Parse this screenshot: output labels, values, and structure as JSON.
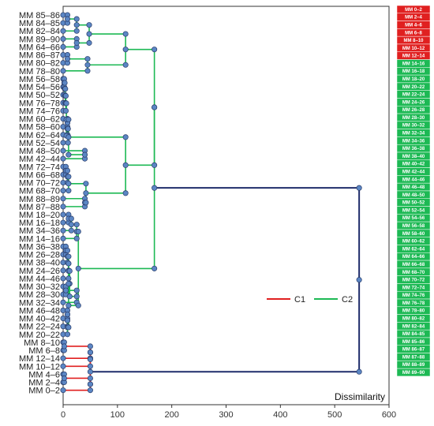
{
  "chart_data": {
    "type": "dendrogram",
    "xlabel": "Dissimilarity",
    "xlim": [
      0,
      600
    ],
    "xticks": [
      0,
      100,
      200,
      300,
      400,
      500,
      600
    ],
    "colors": {
      "C1": "#e02020",
      "C2": "#1db954",
      "root": "#1f2d6b",
      "node": "#5b86c4"
    },
    "legend": {
      "placement": "center-right",
      "entries": [
        {
          "name": "C1",
          "color": "#e02020"
        },
        {
          "name": "C2",
          "color": "#1db954"
        }
      ]
    },
    "leaves": [
      "MM 85–86",
      "MM 84–85",
      "MM 82–84",
      "MM 89–90",
      "MM 64–66",
      "MM 86–87",
      "MM 80–82",
      "MM 78–80",
      "MM 56–58",
      "MM 54–56",
      "MM 50–52",
      "MM 76–78",
      "MM 74–76",
      "MM 60–62",
      "MM 58–60",
      "MM 62–64",
      "MM 52–54",
      "MM 48–50",
      "MM 42–44",
      "MM 72–74",
      "MM 66–68",
      "MM 70–72",
      "MM 68–70",
      "MM 88–89",
      "MM 87–88",
      "MM 18–20",
      "MM 16–18",
      "MM 34–36",
      "MM 14–16",
      "MM 36–38",
      "MM 26–28",
      "MM 38–40",
      "MM 24–26",
      "MM 44–46",
      "MM 30–32",
      "MM 28–30",
      "MM 32–34",
      "MM 46–48",
      "MM 40–42",
      "MM 22–24",
      "MM 20–22",
      "MM 8–10",
      "MM 6–8",
      "MM 12–14",
      "MM 10–12",
      "MM 4–6",
      "MM 2–4",
      "MM 0–2"
    ],
    "merges": [
      {
        "id": "n1",
        "children": [
          "MM 85–86",
          "MM 84–85"
        ],
        "height": 8,
        "cluster": "C2"
      },
      {
        "id": "n2",
        "children": [
          "n1",
          "MM 82–84"
        ],
        "height": 25,
        "cluster": "C2"
      },
      {
        "id": "n3",
        "children": [
          "MM 89–90",
          "MM 64–66"
        ],
        "height": 25,
        "cluster": "C2"
      },
      {
        "id": "n4",
        "children": [
          "n2",
          "n3"
        ],
        "height": 48,
        "cluster": "C2"
      },
      {
        "id": "n5",
        "children": [
          "MM 86–87",
          "MM 80–82"
        ],
        "height": 8,
        "cluster": "C2"
      },
      {
        "id": "n6",
        "children": [
          "n5",
          "MM 78–80"
        ],
        "height": 45,
        "cluster": "C2"
      },
      {
        "id": "n7",
        "children": [
          "n4",
          "n6"
        ],
        "height": 115,
        "cluster": "C2"
      },
      {
        "id": "n8",
        "children": [
          "MM 56–58",
          "MM 54–56"
        ],
        "height": 2,
        "cluster": "C2"
      },
      {
        "id": "n9",
        "children": [
          "n8",
          "MM 50–52"
        ],
        "height": 3,
        "cluster": "C2"
      },
      {
        "id": "n10",
        "children": [
          "n9",
          "MM 76–78"
        ],
        "height": 4,
        "cluster": "C2"
      },
      {
        "id": "n11",
        "children": [
          "n10",
          "MM 74–76"
        ],
        "height": 5,
        "cluster": "C2"
      },
      {
        "id": "n12",
        "children": [
          "MM 60–62",
          "MM 58–60"
        ],
        "height": 8,
        "cluster": "C2"
      },
      {
        "id": "n13",
        "children": [
          "n12",
          "MM 62–64"
        ],
        "height": 8,
        "cluster": "C2"
      },
      {
        "id": "n14",
        "children": [
          "n13",
          "MM 52–54"
        ],
        "height": 9,
        "cluster": "C2"
      },
      {
        "id": "n15",
        "children": [
          "n11",
          "n14"
        ],
        "height": 6,
        "cluster": "C2"
      },
      {
        "id": "n16",
        "children": [
          "MM 48–50",
          "MM 42–44"
        ],
        "height": 40,
        "cluster": "C2"
      },
      {
        "id": "n17",
        "children": [
          "n15",
          "n16"
        ],
        "height": 10,
        "cluster": "C2"
      },
      {
        "id": "n18",
        "children": [
          "MM 72–74",
          "MM 66–68"
        ],
        "height": 5,
        "cluster": "C2"
      },
      {
        "id": "n19",
        "children": [
          "n18",
          "MM 70–72"
        ],
        "height": 8,
        "cluster": "C2"
      },
      {
        "id": "n20",
        "children": [
          "n19",
          "MM 68–70"
        ],
        "height": 10,
        "cluster": "C2"
      },
      {
        "id": "n21",
        "children": [
          "MM 88–89",
          "MM 87–88"
        ],
        "height": 40,
        "cluster": "C2"
      },
      {
        "id": "n22",
        "children": [
          "n20",
          "n21"
        ],
        "height": 42,
        "cluster": "C2"
      },
      {
        "id": "n23",
        "children": [
          "n17",
          "n22"
        ],
        "height": 115,
        "cluster": "C2"
      },
      {
        "id": "n24",
        "children": [
          "n7",
          "n23"
        ],
        "height": 168,
        "cluster": "C2"
      },
      {
        "id": "n25",
        "children": [
          "MM 18–20",
          "MM 16–18"
        ],
        "height": 10,
        "cluster": "C2"
      },
      {
        "id": "n26",
        "children": [
          "n25",
          "MM 34–36"
        ],
        "height": 15,
        "cluster": "C2"
      },
      {
        "id": "n27",
        "children": [
          "n26",
          "MM 14–16"
        ],
        "height": 25,
        "cluster": "C2"
      },
      {
        "id": "n28",
        "children": [
          "MM 36–38",
          "MM 26–28"
        ],
        "height": 5,
        "cluster": "C2"
      },
      {
        "id": "n29",
        "children": [
          "n28",
          "MM 38–40"
        ],
        "height": 8,
        "cluster": "C2"
      },
      {
        "id": "n30",
        "children": [
          "n29",
          "MM 24–26"
        ],
        "height": 10,
        "cluster": "C2"
      },
      {
        "id": "n31",
        "children": [
          "n30",
          "MM 44–46"
        ],
        "height": 10,
        "cluster": "C2"
      },
      {
        "id": "n32",
        "children": [
          "MM 30–32",
          "MM 28–30"
        ],
        "height": 5,
        "cluster": "C2"
      },
      {
        "id": "n33",
        "children": [
          "n32",
          "MM 32–34"
        ],
        "height": 25,
        "cluster": "C2"
      },
      {
        "id": "n34",
        "children": [
          "MM 46–48",
          "MM 40–42"
        ],
        "height": 8,
        "cluster": "C2"
      },
      {
        "id": "n35",
        "children": [
          "n34",
          "MM 22–24"
        ],
        "height": 8,
        "cluster": "C2"
      },
      {
        "id": "n36",
        "children": [
          "n35",
          "MM 20–22"
        ],
        "height": 8,
        "cluster": "C2"
      },
      {
        "id": "n37",
        "children": [
          "n31",
          "n33"
        ],
        "height": 12,
        "cluster": "C2"
      },
      {
        "id": "n38",
        "children": [
          "n37",
          "n36"
        ],
        "height": 10,
        "cluster": "C2"
      },
      {
        "id": "n39",
        "children": [
          "n27",
          "n38"
        ],
        "height": 28,
        "cluster": "C2"
      },
      {
        "id": "n40",
        "children": [
          "n24",
          "n39"
        ],
        "height": 168,
        "cluster": "C2"
      },
      {
        "id": "n41",
        "children": [
          "MM 8–10",
          "MM 6–8"
        ],
        "height": 2,
        "cluster": "C1"
      },
      {
        "id": "n42",
        "children": [
          "n41",
          "MM 12–14"
        ],
        "height": 50,
        "cluster": "C1"
      },
      {
        "id": "n43",
        "children": [
          "n42",
          "MM 10–12"
        ],
        "height": 50,
        "cluster": "C1"
      },
      {
        "id": "n44",
        "children": [
          "MM 4–6",
          "MM 2–4"
        ],
        "height": 2,
        "cluster": "C1"
      },
      {
        "id": "n45",
        "children": [
          "n44",
          "MM 0–2"
        ],
        "height": 50,
        "cluster": "C1"
      },
      {
        "id": "n46",
        "children": [
          "n43",
          "n45"
        ],
        "height": 50,
        "cluster": "C1"
      },
      {
        "id": "root",
        "children": [
          "n40",
          "n46"
        ],
        "height": 545,
        "cluster": "root"
      }
    ],
    "cluster_strip": {
      "C1": [
        "MM 0–2",
        "MM 2–4",
        "MM 4–6",
        "MM 6–8",
        "MM 8–10",
        "MM 10–12",
        "MM 12–14"
      ],
      "C2": [
        "MM 14–16",
        "MM 16–18",
        "MM 18–20",
        "MM 20–22",
        "MM 22–24",
        "MM 24–26",
        "MM 26–28",
        "MM 28–30",
        "MM 30–32",
        "MM 32–34",
        "MM 34–36",
        "MM 36–38",
        "MM 38–40",
        "MM 40–42",
        "MM 42–44",
        "MM 44–46",
        "MM 46–48",
        "MM 48–50",
        "MM 50–52",
        "MM 52–54",
        "MM 54–56",
        "MM 56–58",
        "MM 58–60",
        "MM 60–62",
        "MM 62–64",
        "MM 64–66",
        "MM 66–68",
        "MM 68–70",
        "MM 70–72",
        "MM 72–74",
        "MM 74–76",
        "MM 76–78",
        "MM 78–80",
        "MM 80–82",
        "MM 82–84",
        "MM 84–85",
        "MM 85–86",
        "MM 86–87",
        "MM 87–88",
        "MM 88–89",
        "MM 89–90"
      ]
    }
  }
}
